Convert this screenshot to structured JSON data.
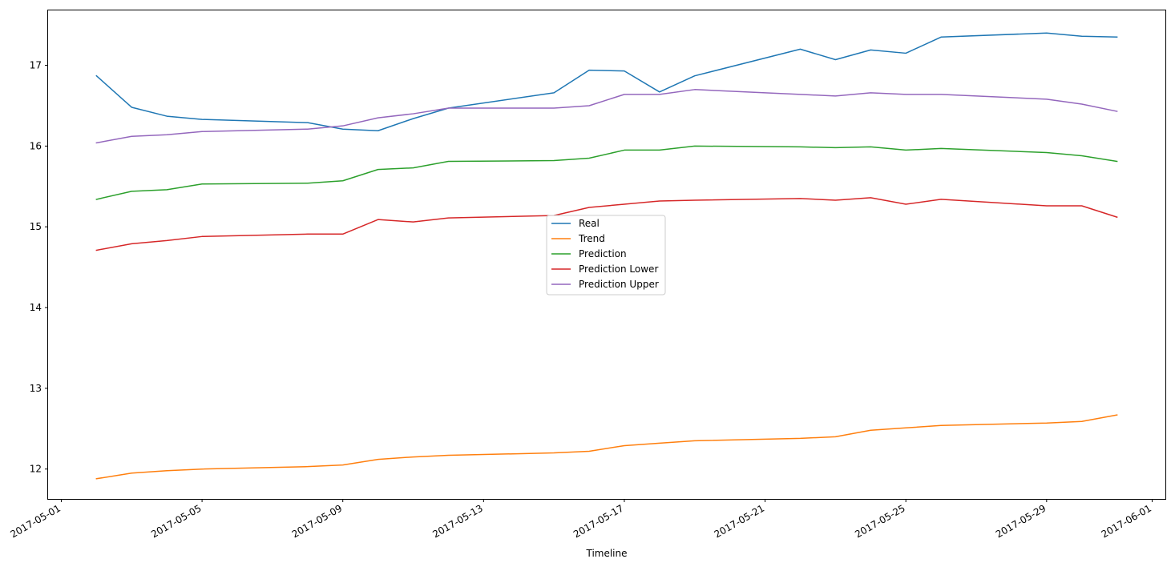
{
  "chart_data": {
    "type": "line",
    "title": "",
    "xlabel": "Timeline",
    "ylabel": "",
    "xlim": [
      "2017-04-30T15:00",
      "2017-06-01T09:00"
    ],
    "ylim": [
      11.63,
      17.68
    ],
    "grid": false,
    "legend_position": "center",
    "x_tick_labels": [
      "2017-05-01",
      "2017-05-05",
      "2017-05-09",
      "2017-05-13",
      "2017-05-17",
      "2017-05-21",
      "2017-05-25",
      "2017-05-29",
      "2017-06-01"
    ],
    "y_tick_labels": [
      "12",
      "13",
      "14",
      "15",
      "16",
      "17"
    ],
    "x": [
      "2017-05-02",
      "2017-05-03",
      "2017-05-04",
      "2017-05-05",
      "2017-05-08",
      "2017-05-09",
      "2017-05-10",
      "2017-05-11",
      "2017-05-12",
      "2017-05-15",
      "2017-05-16",
      "2017-05-17",
      "2017-05-18",
      "2017-05-19",
      "2017-05-22",
      "2017-05-23",
      "2017-05-24",
      "2017-05-25",
      "2017-05-26",
      "2017-05-29",
      "2017-05-30",
      "2017-05-31"
    ],
    "series": [
      {
        "name": "Real",
        "color": "#1f77b4",
        "values": [
          16.87,
          16.48,
          16.37,
          16.33,
          16.29,
          16.21,
          16.19,
          16.34,
          16.47,
          16.66,
          16.94,
          16.93,
          16.67,
          16.87,
          17.2,
          17.07,
          17.19,
          17.15,
          17.35,
          17.4,
          17.36,
          17.35
        ]
      },
      {
        "name": "Trend",
        "color": "#ff7f0e",
        "values": [
          11.88,
          11.95,
          11.98,
          12.0,
          12.03,
          12.05,
          12.12,
          12.15,
          12.17,
          12.2,
          12.22,
          12.29,
          12.32,
          12.35,
          12.38,
          12.4,
          12.48,
          12.51,
          12.54,
          12.57,
          12.59,
          12.67
        ]
      },
      {
        "name": "Prediction",
        "color": "#2ca02c",
        "values": [
          15.34,
          15.44,
          15.46,
          15.53,
          15.54,
          15.57,
          15.71,
          15.73,
          15.81,
          15.82,
          15.85,
          15.95,
          15.95,
          16.0,
          15.99,
          15.98,
          15.99,
          15.95,
          15.97,
          15.92,
          15.88,
          15.81
        ]
      },
      {
        "name": "Prediction Lower",
        "color": "#d62728",
        "values": [
          14.71,
          14.79,
          14.83,
          14.88,
          14.91,
          14.91,
          15.09,
          15.06,
          15.11,
          15.14,
          15.24,
          15.28,
          15.32,
          15.33,
          15.35,
          15.33,
          15.36,
          15.28,
          15.34,
          15.26,
          15.26,
          15.12
        ]
      },
      {
        "name": "Prediction Upper",
        "color": "#9467bd",
        "values": [
          16.04,
          16.12,
          16.14,
          16.18,
          16.21,
          16.25,
          16.35,
          16.4,
          16.47,
          16.47,
          16.5,
          16.64,
          16.64,
          16.7,
          16.64,
          16.62,
          16.66,
          16.64,
          16.64,
          16.58,
          16.52,
          16.43
        ]
      }
    ]
  }
}
